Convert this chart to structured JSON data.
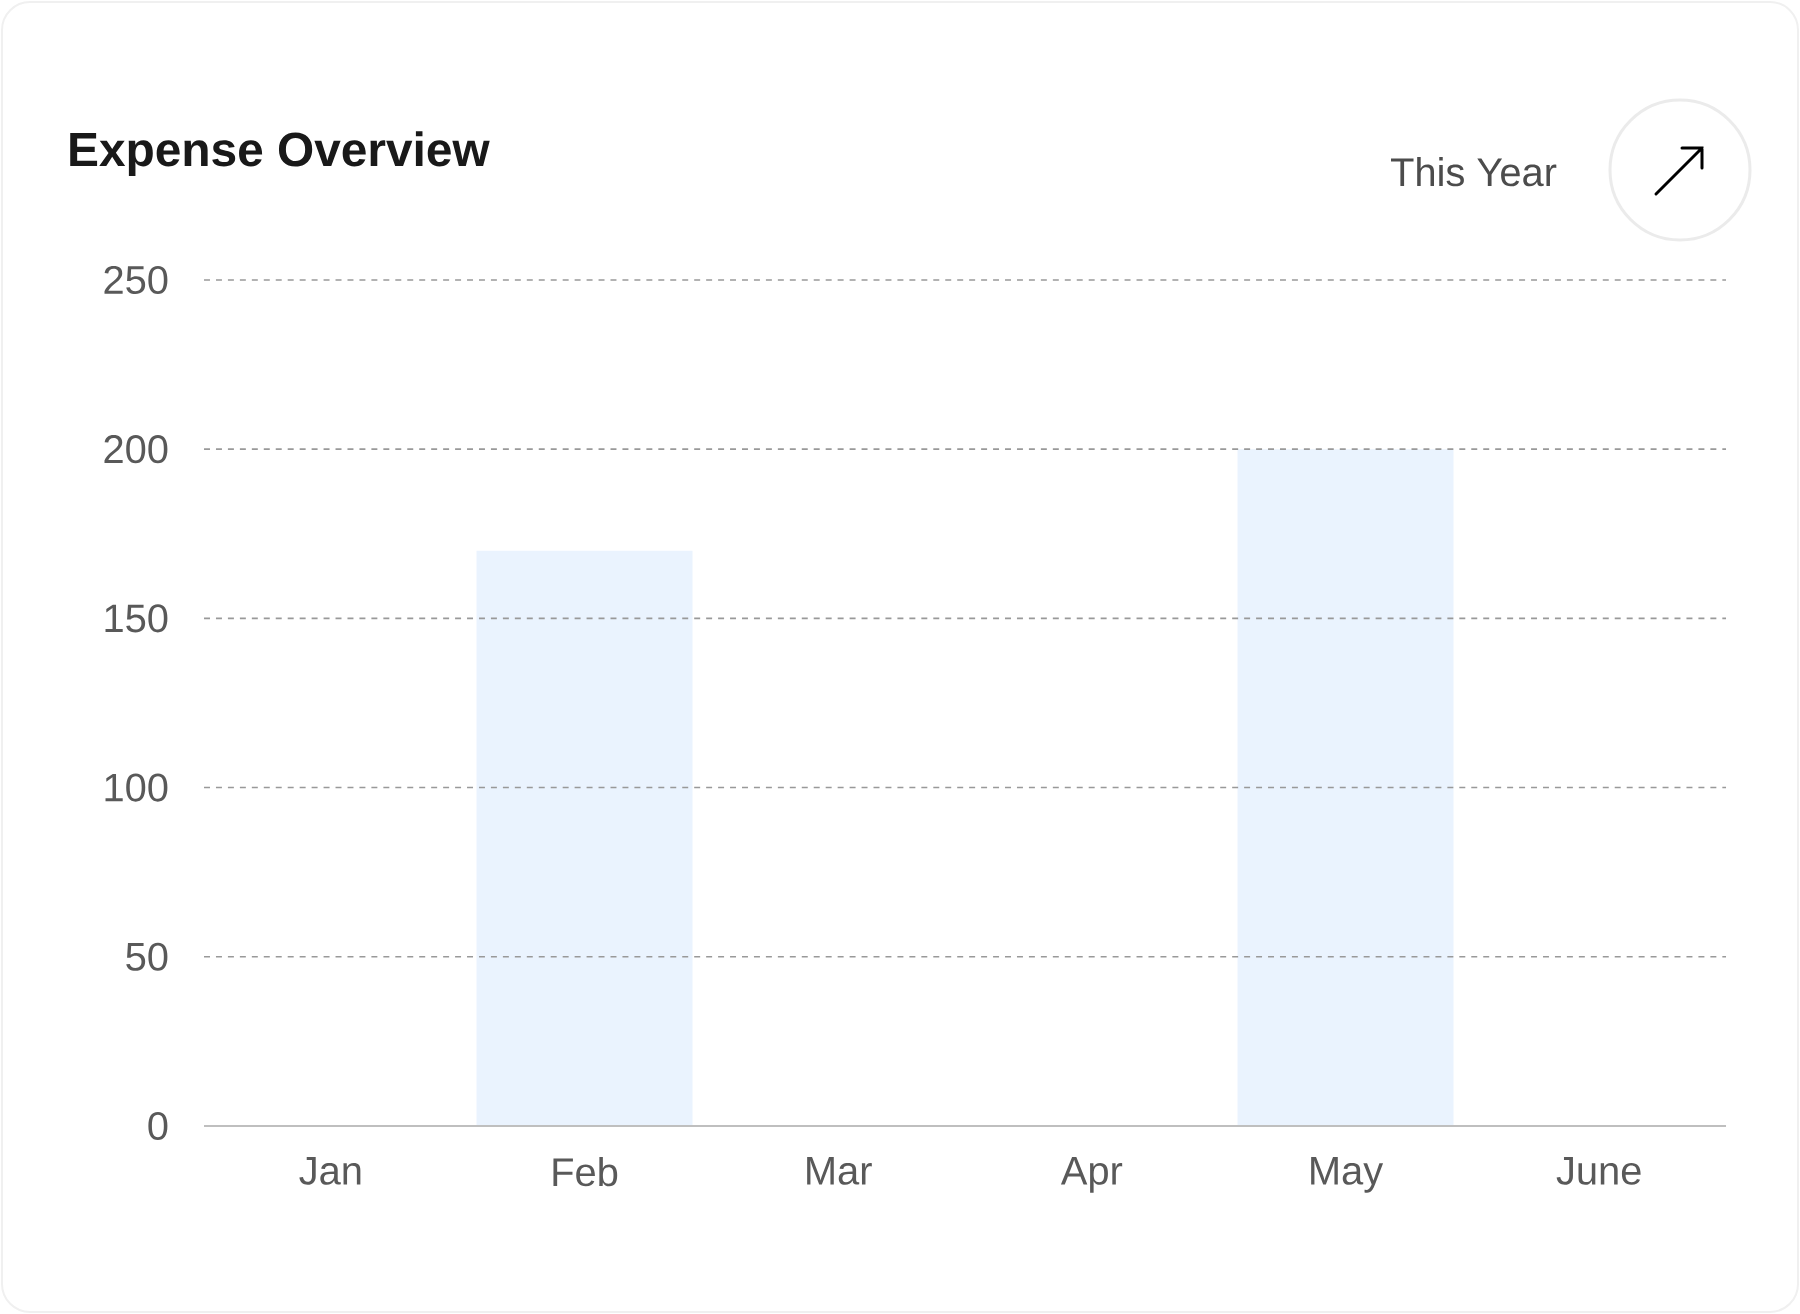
{
  "chart_data": {
    "type": "bar",
    "title": "Expense Overview",
    "annotations": [
      "This Year"
    ],
    "categories": [
      "Jan",
      "Feb",
      "Mar",
      "Apr",
      "May",
      "June"
    ],
    "values": [
      null,
      170,
      null,
      null,
      200,
      null
    ],
    "color": "#eaf3fe",
    "ylim": [
      0,
      250
    ],
    "yticks": [
      0,
      50,
      100,
      150,
      200,
      250
    ],
    "grid": "y"
  }
}
